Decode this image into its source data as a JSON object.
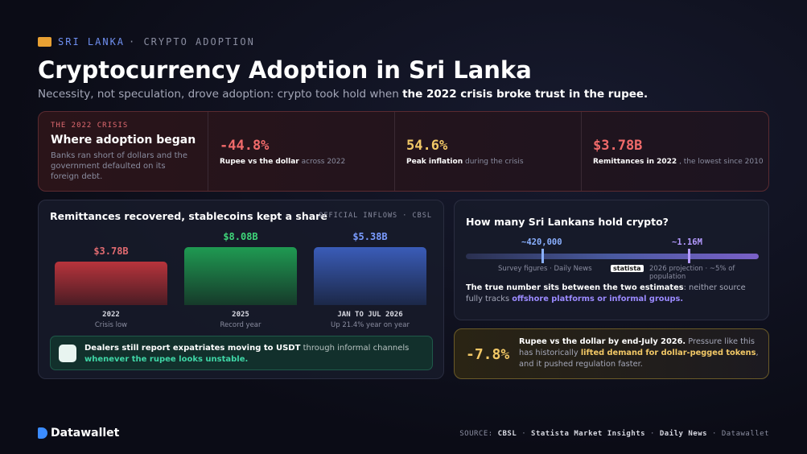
{
  "header": {
    "country": "SRI LANKA",
    "topic": "CRYPTO ADOPTION",
    "title": "Cryptocurrency Adoption in Sri Lanka",
    "subtitle_lead": "Necessity, not speculation, drove adoption: crypto took hold when",
    "subtitle_emphasis": "the 2022 crisis broke trust in the rupee."
  },
  "crisis": {
    "label": "THE 2022 CRISIS",
    "heading": "Where adoption began",
    "body": "Banks ran short of dollars and the government defaulted on its foreign debt.",
    "stats": [
      {
        "value": "-44.8%",
        "label": "Rupee vs the dollar",
        "rest": "across 2022"
      },
      {
        "value": "54.6%",
        "label": "Peak inflation",
        "rest": "during the crisis"
      },
      {
        "value": "$3.78B",
        "label": "Remittances in 2022",
        "rest": ", the lowest since 2010"
      }
    ]
  },
  "remittances": {
    "title": "Remittances recovered, stablecoins kept a share",
    "source": "OFFICIAL INFLOWS · CBSL",
    "bars": [
      {
        "value": "$3.78B",
        "label": "2022",
        "note": "Crisis low"
      },
      {
        "value": "$8.08B",
        "label": "2025",
        "note": "Record year"
      },
      {
        "value": "$5.38B",
        "label": "JAN TO JUL 2026",
        "note": "Up 21.4% year on year"
      }
    ],
    "note_lead": "Dealers still report expatriates moving to USDT",
    "note_mid": "through informal channels",
    "note_emphasis": "whenever the rupee looks unstable."
  },
  "holders": {
    "title": "How many Sri Lankans hold crypto?",
    "low": "~420,000",
    "low_source": "Survey figures · Daily News",
    "high": "~1.16M",
    "badge": "statista",
    "high_source": "2026 projection · ~5% of population",
    "body_lead": "The true number sits between the two estimates",
    "body_mid": ": neither source fully tracks",
    "body_emphasis": "offshore platforms or informal groups."
  },
  "rupee": {
    "value": "-7.8%",
    "lead": "Rupee vs the dollar by end-July 2026.",
    "mid": "Pressure like this has historically",
    "emphasis": "lifted demand for dollar-pegged tokens",
    "end": ", and it pushed regulation faster."
  },
  "footer": {
    "brand": "Datawallet",
    "source_label": "SOURCE:",
    "sources": [
      "CBSL",
      "Statista Market Insights",
      "Daily News"
    ],
    "credit": "Datawallet"
  }
}
